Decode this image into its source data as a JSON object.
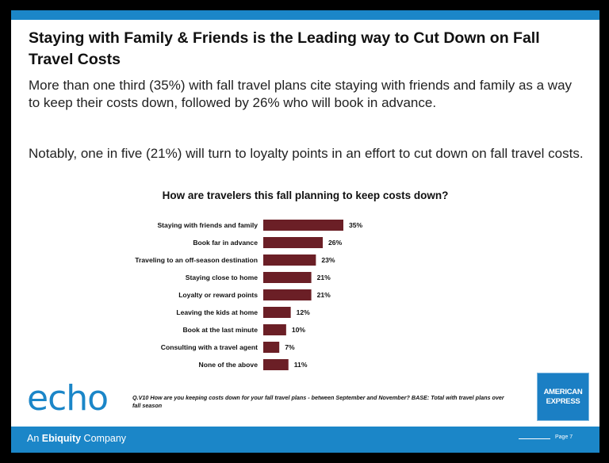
{
  "slide": {
    "title": "Staying with Family & Friends is the Leading way to Cut Down on Fall Travel Costs",
    "para1": "More than one third (35%) with fall travel plans cite staying with friends and family as a way to keep their costs down, followed by 26% who will book in advance.",
    "para2": "Notably, one in five (21%) will turn to loyalty points in an effort to cut down on fall travel costs.",
    "footnote": "Q.V10  How are you keeping costs down for your fall travel plans - between September and November? BASE:  Total with travel plans over fall season",
    "logo_text": "echo",
    "company_prefix": "An ",
    "company_bold": "Ebiquity",
    "company_suffix": " Company",
    "amex_line1": "AMERICAN",
    "amex_line2": "EXPRESS",
    "page_label": "Page 7",
    "accent_color": "#1b86c8",
    "bar_color": "#6b1f26"
  },
  "chart_data": {
    "type": "bar",
    "orientation": "horizontal",
    "title": "How are travelers this fall planning to keep costs down?",
    "categories": [
      "Staying with friends and family",
      "Book far in advance",
      "Traveling to an off-season destination",
      "Staying close to home",
      "Loyalty or reward points",
      "Leaving the kids at home",
      "Book at the last minute",
      "Consulting with a travel agent",
      "None of the above"
    ],
    "values": [
      35,
      26,
      23,
      21,
      21,
      12,
      10,
      7,
      11
    ],
    "value_labels": [
      "35%",
      "26%",
      "23%",
      "21%",
      "21%",
      "12%",
      "10%",
      "7%",
      "11%"
    ],
    "xlim": [
      0,
      35
    ],
    "grid": false
  }
}
